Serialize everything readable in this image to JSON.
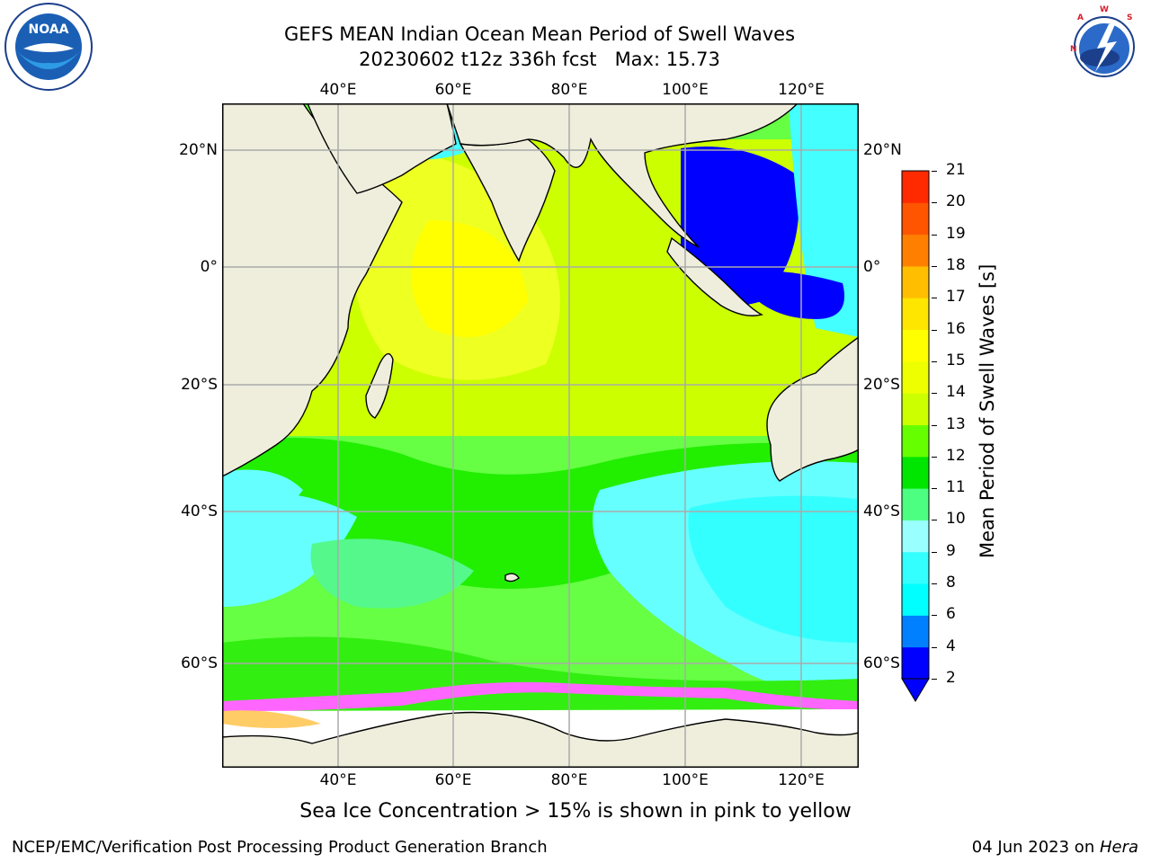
{
  "header": {
    "title_line1": "GEFS MEAN Indian Ocean Mean Period of Swell Waves",
    "title_line2": "20230602 t12z 336h fcst   Max: 15.73"
  },
  "logos": {
    "noaa_text": "NOAA",
    "noaa_ring_text": "NATIONAL OCEANIC AND ATMOSPHERIC ADMINISTRATION · U.S. DEPARTMENT OF COMMERCE",
    "nws_ring_text": "NATIONAL WEATHER SERVICE"
  },
  "map": {
    "lon_ticks": [
      "40°E",
      "60°E",
      "80°E",
      "100°E",
      "120°E"
    ],
    "lat_ticks_left": [
      "20°N",
      "0°",
      "20°S",
      "40°S",
      "60°S"
    ],
    "lat_ticks_right": [
      "20°N",
      "0°",
      "20°S",
      "40°S",
      "60°S"
    ],
    "land_color": "#efeedd",
    "ice_color": "#ffffff"
  },
  "colorbar": {
    "label": "Mean Period of Swell Waves [s]",
    "ticks": [
      "2",
      "4",
      "6",
      "8",
      "9",
      "10",
      "11",
      "12",
      "13",
      "14",
      "15",
      "16",
      "17",
      "18",
      "19",
      "20",
      "21"
    ],
    "colors": [
      "#0000ff",
      "#0080ff",
      "#00ffff",
      "#33ffff",
      "#99ffff",
      "#4dff80",
      "#00e600",
      "#66ff00",
      "#ccff00",
      "#eeff00",
      "#ffff00",
      "#ffe600",
      "#ffbf00",
      "#ff8000",
      "#ff5500",
      "#ff2a00"
    ],
    "extend_color": "#0000ff"
  },
  "caption": "Sea Ice Concentration > 15% is shown in pink to yellow",
  "footer": {
    "left": "NCEP/EMC/Verification Post Processing Product Generation Branch",
    "right_prefix": "04 Jun 2023 on ",
    "right_machine": "Hera"
  }
}
